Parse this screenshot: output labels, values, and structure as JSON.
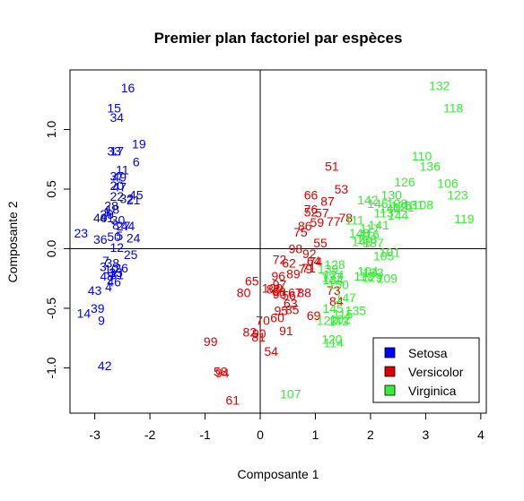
{
  "chart_data": {
    "type": "scatter",
    "title": "Premier plan factoriel par espèces",
    "xlabel": "Composante 1",
    "ylabel": "Composante 2",
    "xlim": [
      -3.45,
      4.1
    ],
    "ylim": [
      -1.38,
      1.5
    ],
    "xticks": [
      -3,
      -2,
      -1,
      0,
      1,
      2,
      3,
      4
    ],
    "yticks": [
      -1.0,
      -0.5,
      0.0,
      0.5,
      1.0
    ],
    "xtick_labels": [
      "-3",
      "-2",
      "-1",
      "0",
      "1",
      "2",
      "3",
      "4"
    ],
    "ytick_labels": [
      "-1.0",
      "-0.5",
      "0.0",
      "0.5",
      "1.0"
    ],
    "reference_lines": {
      "x": 0,
      "y": 0
    },
    "legend": {
      "position": "bottom-right",
      "entries": [
        "Setosa",
        "Versicolor",
        "Virginica"
      ]
    },
    "series": [
      {
        "name": "Setosa",
        "color": "#0000ff",
        "points": [
          {
            "label": "16",
            "x": -2.4,
            "y": 1.35
          },
          {
            "label": "15",
            "x": -2.65,
            "y": 1.18
          },
          {
            "label": "34",
            "x": -2.6,
            "y": 1.1
          },
          {
            "label": "19",
            "x": -2.2,
            "y": 0.88
          },
          {
            "label": "33",
            "x": -2.65,
            "y": 0.82
          },
          {
            "label": "17",
            "x": -2.6,
            "y": 0.82
          },
          {
            "label": "6",
            "x": -2.25,
            "y": 0.73
          },
          {
            "label": "11",
            "x": -2.5,
            "y": 0.66
          },
          {
            "label": "37",
            "x": -2.6,
            "y": 0.61
          },
          {
            "label": "49",
            "x": -2.55,
            "y": 0.6
          },
          {
            "label": "20",
            "x": -2.6,
            "y": 0.53
          },
          {
            "label": "47",
            "x": -2.55,
            "y": 0.52
          },
          {
            "label": "22",
            "x": -2.6,
            "y": 0.44
          },
          {
            "label": "45",
            "x": -2.25,
            "y": 0.45
          },
          {
            "label": "32",
            "x": -2.42,
            "y": 0.42
          },
          {
            "label": "21",
            "x": -2.3,
            "y": 0.41
          },
          {
            "label": "28",
            "x": -2.7,
            "y": 0.36
          },
          {
            "label": "18",
            "x": -2.68,
            "y": 0.33
          },
          {
            "label": "29",
            "x": -2.78,
            "y": 0.29
          },
          {
            "label": "40",
            "x": -2.9,
            "y": 0.26
          },
          {
            "label": "41",
            "x": -2.78,
            "y": 0.26
          },
          {
            "label": "44",
            "x": -2.4,
            "y": 0.19
          },
          {
            "label": "8",
            "x": -2.62,
            "y": 0.2
          },
          {
            "label": "27",
            "x": -2.48,
            "y": 0.19
          },
          {
            "label": "23",
            "x": -3.25,
            "y": 0.13
          },
          {
            "label": "36",
            "x": -2.9,
            "y": 0.08
          },
          {
            "label": "50",
            "x": -2.65,
            "y": 0.1
          },
          {
            "label": "5",
            "x": -2.55,
            "y": 0.11
          },
          {
            "label": "24",
            "x": -2.3,
            "y": 0.09
          },
          {
            "label": "12",
            "x": -2.6,
            "y": 0.01
          },
          {
            "label": "25",
            "x": -2.35,
            "y": -0.05
          },
          {
            "label": "7",
            "x": -2.8,
            "y": -0.1
          },
          {
            "label": "38",
            "x": -2.68,
            "y": -0.12
          },
          {
            "label": "3",
            "x": -2.85,
            "y": -0.15
          },
          {
            "label": "10",
            "x": -2.7,
            "y": -0.17
          },
          {
            "label": "26",
            "x": -2.52,
            "y": -0.16
          },
          {
            "label": "35",
            "x": -2.62,
            "y": -0.2
          },
          {
            "label": "31",
            "x": -2.6,
            "y": -0.22
          },
          {
            "label": "48",
            "x": -2.78,
            "y": -0.23
          },
          {
            "label": "2",
            "x": -2.72,
            "y": -0.26
          },
          {
            "label": "46",
            "x": -2.65,
            "y": -0.28
          },
          {
            "label": "43",
            "x": -3.0,
            "y": -0.35
          },
          {
            "label": "4",
            "x": -2.75,
            "y": -0.32
          },
          {
            "label": "39",
            "x": -2.95,
            "y": -0.5
          },
          {
            "label": "14",
            "x": -3.2,
            "y": -0.54
          },
          {
            "label": "9",
            "x": -2.88,
            "y": -0.6
          },
          {
            "label": "42",
            "x": -2.82,
            "y": -0.98
          },
          {
            "label": "1",
            "x": -2.78,
            "y": 0.31
          },
          {
            "label": "13",
            "x": -2.62,
            "y": -0.2
          },
          {
            "label": "30",
            "x": -2.58,
            "y": 0.24
          }
        ]
      },
      {
        "name": "Versicolor",
        "color": "#dd0000",
        "points": [
          {
            "label": "51",
            "x": 1.3,
            "y": 0.69
          },
          {
            "label": "53",
            "x": 1.47,
            "y": 0.5
          },
          {
            "label": "66",
            "x": 0.92,
            "y": 0.45
          },
          {
            "label": "87",
            "x": 1.22,
            "y": 0.4
          },
          {
            "label": "76",
            "x": 0.92,
            "y": 0.33
          },
          {
            "label": "52",
            "x": 0.92,
            "y": 0.31
          },
          {
            "label": "57",
            "x": 1.12,
            "y": 0.3
          },
          {
            "label": "78",
            "x": 1.55,
            "y": 0.26
          },
          {
            "label": "77",
            "x": 1.33,
            "y": 0.23
          },
          {
            "label": "59",
            "x": 1.03,
            "y": 0.22
          },
          {
            "label": "86",
            "x": 0.81,
            "y": 0.19
          },
          {
            "label": "75",
            "x": 0.73,
            "y": 0.14
          },
          {
            "label": "55",
            "x": 1.09,
            "y": 0.05
          },
          {
            "label": "98",
            "x": 0.64,
            "y": 0.0
          },
          {
            "label": "92",
            "x": 0.89,
            "y": -0.04
          },
          {
            "label": "72",
            "x": 0.35,
            "y": -0.09
          },
          {
            "label": "64",
            "x": 0.97,
            "y": -0.1
          },
          {
            "label": "74",
            "x": 1.0,
            "y": -0.11
          },
          {
            "label": "62",
            "x": 0.52,
            "y": -0.12
          },
          {
            "label": "79",
            "x": 0.82,
            "y": -0.17
          },
          {
            "label": "71",
            "x": 0.88,
            "y": -0.16
          },
          {
            "label": "89",
            "x": 0.6,
            "y": -0.21
          },
          {
            "label": "65",
            "x": -0.15,
            "y": -0.27
          },
          {
            "label": "96",
            "x": 0.33,
            "y": -0.23
          },
          {
            "label": "97",
            "x": 0.35,
            "y": -0.3
          },
          {
            "label": "100",
            "x": 0.22,
            "y": -0.33
          },
          {
            "label": "83",
            "x": 0.24,
            "y": -0.34
          },
          {
            "label": "68",
            "x": 0.34,
            "y": -0.36
          },
          {
            "label": "80",
            "x": -0.3,
            "y": -0.37
          },
          {
            "label": "93",
            "x": 0.35,
            "y": -0.38
          },
          {
            "label": "56",
            "x": 0.52,
            "y": -0.39
          },
          {
            "label": "67",
            "x": 0.63,
            "y": -0.37
          },
          {
            "label": "88",
            "x": 0.8,
            "y": -0.37
          },
          {
            "label": "73",
            "x": 1.33,
            "y": -0.35
          },
          {
            "label": "84",
            "x": 1.38,
            "y": -0.44
          },
          {
            "label": "63",
            "x": 0.55,
            "y": -0.46
          },
          {
            "label": "95",
            "x": 0.38,
            "y": -0.52
          },
          {
            "label": "85",
            "x": 0.58,
            "y": -0.51
          },
          {
            "label": "69",
            "x": 0.97,
            "y": -0.56
          },
          {
            "label": "60",
            "x": 0.31,
            "y": -0.58
          },
          {
            "label": "70",
            "x": 0.05,
            "y": -0.6
          },
          {
            "label": "91",
            "x": 0.47,
            "y": -0.69
          },
          {
            "label": "82",
            "x": -0.19,
            "y": -0.7
          },
          {
            "label": "90",
            "x": -0.02,
            "y": -0.71
          },
          {
            "label": "81",
            "x": -0.03,
            "y": -0.74
          },
          {
            "label": "99",
            "x": -0.9,
            "y": -0.78
          },
          {
            "label": "54",
            "x": 0.2,
            "y": -0.86
          },
          {
            "label": "58",
            "x": -0.72,
            "y": -1.03
          },
          {
            "label": "94",
            "x": -0.69,
            "y": -1.04
          },
          {
            "label": "61",
            "x": -0.5,
            "y": -1.27
          }
        ]
      },
      {
        "name": "Virginica",
        "color": "#33ee33",
        "points": [
          {
            "label": "132",
            "x": 3.25,
            "y": 1.37
          },
          {
            "label": "118",
            "x": 3.5,
            "y": 1.18
          },
          {
            "label": "110",
            "x": 2.93,
            "y": 0.78
          },
          {
            "label": "136",
            "x": 3.08,
            "y": 0.69
          },
          {
            "label": "126",
            "x": 2.62,
            "y": 0.56
          },
          {
            "label": "106",
            "x": 3.4,
            "y": 0.55
          },
          {
            "label": "123",
            "x": 3.58,
            "y": 0.45
          },
          {
            "label": "130",
            "x": 2.38,
            "y": 0.45
          },
          {
            "label": "142",
            "x": 1.95,
            "y": 0.41
          },
          {
            "label": "146",
            "x": 2.13,
            "y": 0.38
          },
          {
            "label": "103",
            "x": 2.48,
            "y": 0.38
          },
          {
            "label": "108",
            "x": 2.95,
            "y": 0.37
          },
          {
            "label": "131",
            "x": 2.78,
            "y": 0.37
          },
          {
            "label": "125",
            "x": 2.55,
            "y": 0.36
          },
          {
            "label": "121",
            "x": 2.6,
            "y": 0.35
          },
          {
            "label": "140",
            "x": 2.35,
            "y": 0.34
          },
          {
            "label": "113",
            "x": 2.24,
            "y": 0.3
          },
          {
            "label": "144",
            "x": 2.5,
            "y": 0.28
          },
          {
            "label": "119",
            "x": 3.7,
            "y": 0.25
          },
          {
            "label": "111",
            "x": 1.71,
            "y": 0.24
          },
          {
            "label": "141",
            "x": 2.15,
            "y": 0.2
          },
          {
            "label": "117",
            "x": 1.99,
            "y": 0.17
          },
          {
            "label": "148",
            "x": 1.8,
            "y": 0.13
          },
          {
            "label": "116",
            "x": 1.98,
            "y": 0.12
          },
          {
            "label": "138",
            "x": 1.93,
            "y": 0.08
          },
          {
            "label": "149",
            "x": 1.85,
            "y": 0.06
          },
          {
            "label": "137",
            "x": 2.05,
            "y": 0.05
          },
          {
            "label": "101",
            "x": 2.35,
            "y": -0.03
          },
          {
            "label": "105",
            "x": 2.24,
            "y": -0.06
          },
          {
            "label": "128",
            "x": 1.35,
            "y": -0.13
          },
          {
            "label": "139",
            "x": 1.23,
            "y": -0.17
          },
          {
            "label": "104",
            "x": 1.95,
            "y": -0.19
          },
          {
            "label": "124",
            "x": 1.33,
            "y": -0.22
          },
          {
            "label": "112",
            "x": 1.88,
            "y": -0.23
          },
          {
            "label": "127",
            "x": 1.3,
            "y": -0.24
          },
          {
            "label": "134",
            "x": 1.32,
            "y": -0.26
          },
          {
            "label": "129",
            "x": 2.03,
            "y": -0.24
          },
          {
            "label": "109",
            "x": 2.3,
            "y": -0.25
          },
          {
            "label": "133",
            "x": 2.05,
            "y": -0.2
          },
          {
            "label": "150",
            "x": 1.42,
            "y": -0.3
          },
          {
            "label": "147",
            "x": 1.55,
            "y": -0.41
          },
          {
            "label": "145",
            "x": 1.32,
            "y": -0.5
          },
          {
            "label": "115",
            "x": 1.5,
            "y": -0.55
          },
          {
            "label": "135",
            "x": 1.73,
            "y": -0.52
          },
          {
            "label": "102",
            "x": 1.45,
            "y": -0.59
          },
          {
            "label": "143",
            "x": 1.42,
            "y": -0.61
          },
          {
            "label": "122",
            "x": 1.21,
            "y": -0.6
          },
          {
            "label": "120",
            "x": 1.3,
            "y": -0.76
          },
          {
            "label": "114",
            "x": 1.33,
            "y": -0.79
          },
          {
            "label": "107",
            "x": 0.55,
            "y": -1.22
          }
        ]
      }
    ]
  }
}
